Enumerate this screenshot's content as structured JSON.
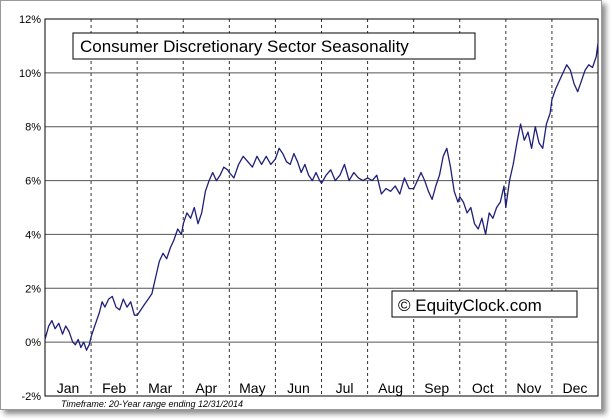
{
  "chart_data": {
    "type": "line",
    "title": "Consumer Discretionary Sector Seasonality",
    "watermark": "© EquityClock.com",
    "footnote": "Timeframe: 20-Year range ending 12/31/2014",
    "months": [
      "Jan",
      "Feb",
      "Mar",
      "Apr",
      "May",
      "Jun",
      "Jul",
      "Aug",
      "Sep",
      "Oct",
      "Nov",
      "Dec"
    ],
    "y_ticks": [
      "12%",
      "10%",
      "8%",
      "6%",
      "4%",
      "2%",
      "0%",
      "-2%"
    ],
    "y_tick_values": [
      12,
      10,
      8,
      6,
      4,
      2,
      0,
      -2
    ],
    "ylim": [
      -2,
      12
    ],
    "xlim": [
      0,
      12
    ],
    "grid": true,
    "line_color": "#1f1f7a",
    "series": [
      {
        "x": [
          0.0,
          0.08,
          0.15,
          0.22,
          0.3,
          0.38,
          0.45,
          0.52,
          0.6,
          0.66,
          0.72,
          0.78,
          0.84,
          0.9,
          0.96,
          1.0,
          1.06,
          1.12,
          1.18,
          1.24,
          1.3,
          1.38,
          1.46,
          1.54,
          1.62,
          1.7,
          1.78,
          1.86,
          1.94,
          2.0,
          2.08,
          2.16,
          2.24,
          2.32,
          2.4,
          2.48,
          2.56,
          2.64,
          2.72,
          2.8,
          2.88,
          2.96,
          3.0,
          3.08,
          3.16,
          3.24,
          3.32,
          3.4,
          3.48,
          3.56,
          3.64,
          3.72,
          3.8,
          3.88,
          3.96,
          4.0,
          4.1,
          4.2,
          4.3,
          4.4,
          4.5,
          4.6,
          4.7,
          4.8,
          4.9,
          5.0,
          5.08,
          5.16,
          5.24,
          5.32,
          5.4,
          5.48,
          5.56,
          5.64,
          5.72,
          5.8,
          5.88,
          5.96,
          6.0,
          6.1,
          6.2,
          6.3,
          6.4,
          6.5,
          6.6,
          6.7,
          6.8,
          6.9,
          7.0,
          7.1,
          7.2,
          7.3,
          7.4,
          7.5,
          7.6,
          7.7,
          7.8,
          7.9,
          8.0,
          8.08,
          8.16,
          8.24,
          8.32,
          8.4,
          8.48,
          8.56,
          8.64,
          8.72,
          8.8,
          8.88,
          8.96,
          9.0,
          9.08,
          9.16,
          9.24,
          9.32,
          9.4,
          9.48,
          9.56,
          9.64,
          9.72,
          9.8,
          9.88,
          9.96,
          10.0,
          10.08,
          10.16,
          10.24,
          10.32,
          10.4,
          10.48,
          10.56,
          10.64,
          10.72,
          10.8,
          10.88,
          10.96,
          11.0,
          11.08,
          11.16,
          11.24,
          11.32,
          11.4,
          11.48,
          11.56,
          11.64,
          11.72,
          11.8,
          11.88,
          11.96,
          12.0
        ],
        "y": [
          0.1,
          0.6,
          0.8,
          0.5,
          0.7,
          0.3,
          0.6,
          0.4,
          0.0,
          -0.1,
          0.1,
          -0.2,
          0.0,
          -0.3,
          -0.1,
          0.2,
          0.5,
          0.8,
          1.1,
          1.5,
          1.3,
          1.6,
          1.7,
          1.3,
          1.2,
          1.6,
          1.3,
          1.5,
          1.0,
          1.0,
          1.2,
          1.4,
          1.6,
          1.8,
          2.4,
          3.0,
          3.3,
          3.1,
          3.5,
          3.8,
          4.2,
          4.0,
          4.4,
          4.8,
          4.6,
          5.0,
          4.4,
          4.8,
          5.6,
          6.0,
          6.3,
          6.0,
          6.2,
          6.5,
          6.4,
          6.3,
          6.1,
          6.6,
          6.9,
          6.7,
          6.5,
          6.9,
          6.6,
          6.9,
          6.6,
          6.8,
          7.2,
          7.0,
          6.7,
          6.6,
          7.0,
          6.7,
          6.3,
          6.6,
          6.2,
          6.0,
          6.3,
          6.0,
          5.9,
          6.2,
          6.4,
          6.0,
          6.2,
          6.6,
          6.0,
          6.3,
          6.1,
          6.0,
          6.1,
          6.0,
          6.2,
          5.5,
          5.7,
          5.6,
          5.8,
          5.5,
          6.1,
          5.7,
          5.7,
          6.0,
          6.3,
          6.0,
          5.6,
          5.3,
          5.8,
          6.2,
          6.9,
          7.2,
          6.5,
          5.6,
          5.2,
          5.4,
          5.2,
          4.8,
          5.0,
          4.4,
          4.2,
          4.6,
          4.0,
          4.8,
          4.6,
          5.0,
          5.2,
          5.8,
          5.0,
          6.0,
          6.6,
          7.4,
          8.1,
          7.5,
          7.8,
          7.2,
          8.0,
          7.4,
          7.2,
          8.1,
          8.5,
          9.0,
          9.4,
          9.7,
          10.0,
          10.3,
          10.1,
          9.6,
          9.3,
          9.7,
          10.1,
          10.3,
          10.2,
          10.6,
          11.1
        ]
      }
    ]
  }
}
